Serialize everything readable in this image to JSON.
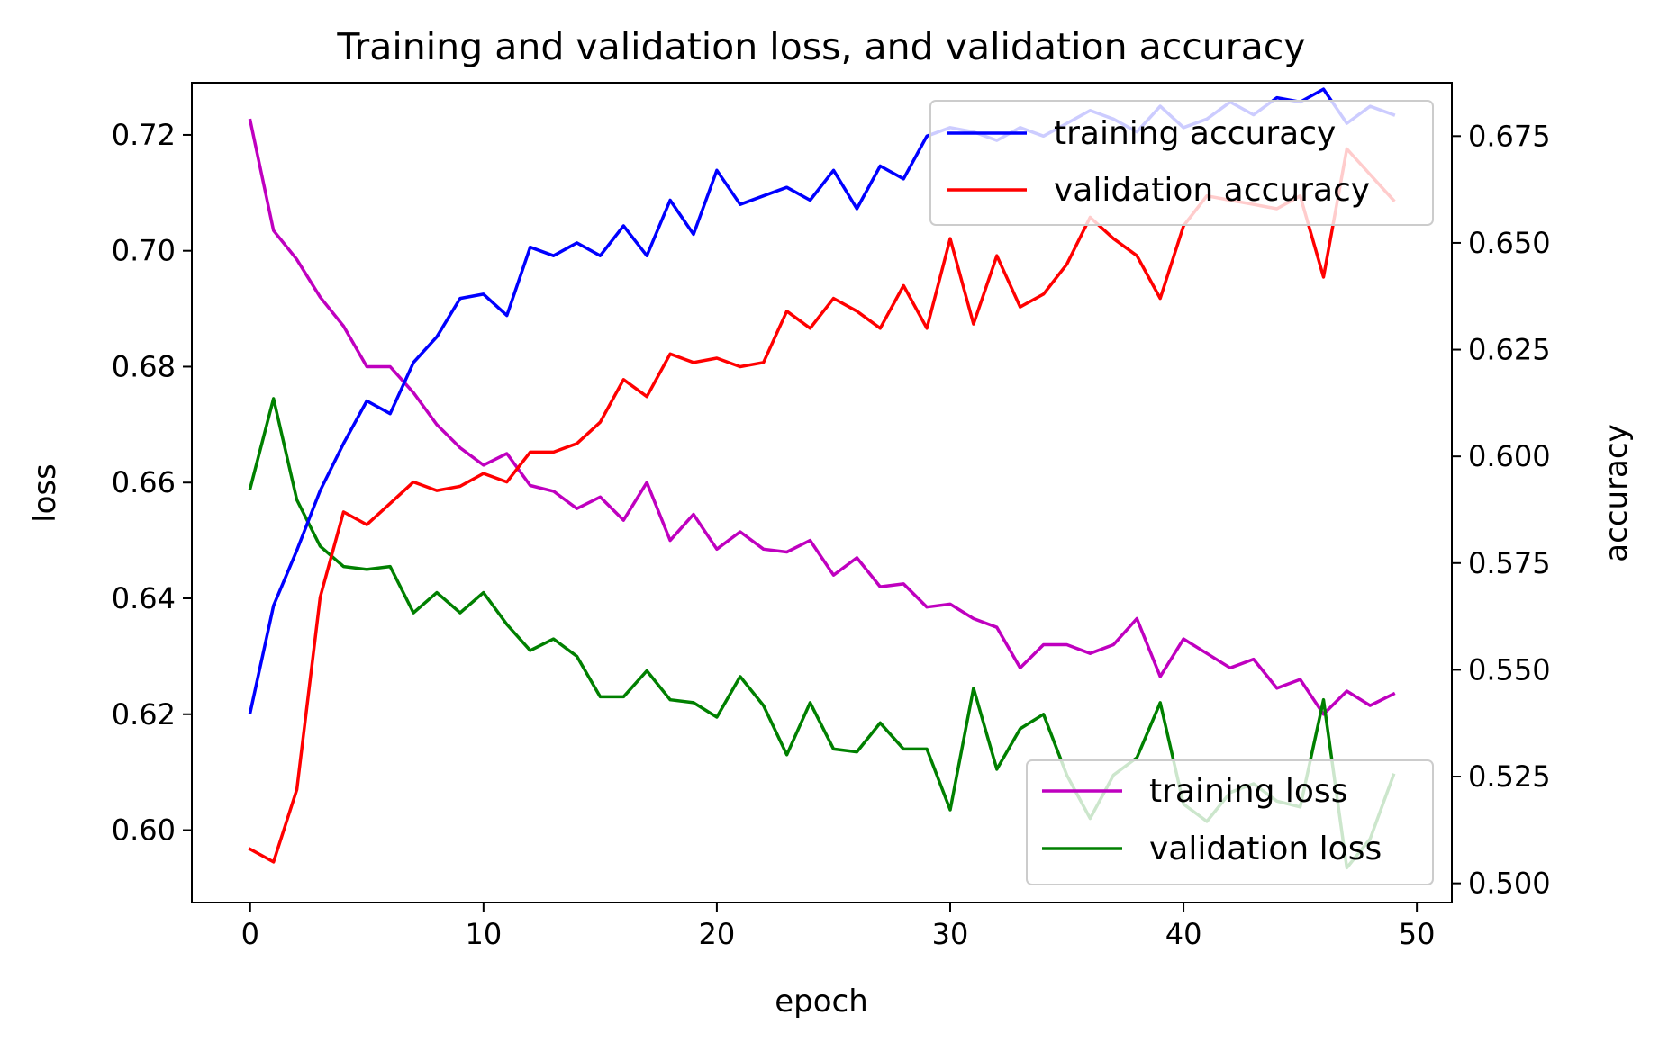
{
  "chart_data": {
    "type": "line",
    "title": "Training and validation loss, and validation accuracy",
    "xlabel": "epoch",
    "ylabel_left": "loss",
    "ylabel_right": "accuracy",
    "xlim": [
      -2.5,
      51.5
    ],
    "ylim_left": [
      0.5875,
      0.729
    ],
    "ylim_right": [
      0.4955,
      0.6875
    ],
    "xticks": [
      0,
      10,
      20,
      30,
      40,
      50
    ],
    "yticks_left": [
      0.6,
      0.62,
      0.64,
      0.66,
      0.68,
      0.7,
      0.72
    ],
    "yticks_right": [
      0.5,
      0.525,
      0.55,
      0.575,
      0.6,
      0.625,
      0.65,
      0.675
    ],
    "x": [
      0,
      1,
      2,
      3,
      4,
      5,
      6,
      7,
      8,
      9,
      10,
      11,
      12,
      13,
      14,
      15,
      16,
      17,
      18,
      19,
      20,
      21,
      22,
      23,
      24,
      25,
      26,
      27,
      28,
      29,
      30,
      31,
      32,
      33,
      34,
      35,
      36,
      37,
      38,
      39,
      40,
      41,
      42,
      43,
      44,
      45,
      46,
      47,
      48,
      49
    ],
    "series_right": [
      {
        "name": "training accuracy",
        "color": "#0000ff",
        "values": [
          0.54,
          0.565,
          0.578,
          0.592,
          0.603,
          0.613,
          0.61,
          0.622,
          0.628,
          0.637,
          0.638,
          0.633,
          0.649,
          0.647,
          0.65,
          0.647,
          0.654,
          0.647,
          0.66,
          0.652,
          0.667,
          0.659,
          0.661,
          0.663,
          0.66,
          0.667,
          0.658,
          0.668,
          0.665,
          0.675,
          0.677,
          0.676,
          0.674,
          0.677,
          0.675,
          0.678,
          0.681,
          0.679,
          0.676,
          0.682,
          0.677,
          0.679,
          0.683,
          0.68,
          0.684,
          0.683,
          0.686,
          0.678,
          0.682,
          0.68
        ]
      },
      {
        "name": "validation accuracy",
        "color": "#ff0000",
        "values": [
          0.508,
          0.505,
          0.522,
          0.567,
          0.587,
          0.584,
          0.589,
          0.594,
          0.592,
          0.593,
          0.596,
          0.594,
          0.601,
          0.601,
          0.603,
          0.608,
          0.618,
          0.614,
          0.624,
          0.622,
          0.623,
          0.621,
          0.622,
          0.634,
          0.63,
          0.637,
          0.634,
          0.63,
          0.64,
          0.63,
          0.651,
          0.631,
          0.647,
          0.635,
          0.638,
          0.645,
          0.656,
          0.651,
          0.647,
          0.637,
          0.654,
          0.661,
          0.66,
          0.659,
          0.658,
          0.661,
          0.642,
          0.672,
          0.666,
          0.66
        ]
      }
    ],
    "series_left": [
      {
        "name": "training loss",
        "color": "#bf00bf",
        "values": [
          0.7225,
          0.7035,
          0.6985,
          0.692,
          0.687,
          0.68,
          0.68,
          0.6755,
          0.67,
          0.666,
          0.663,
          0.665,
          0.6595,
          0.6585,
          0.6555,
          0.6575,
          0.6535,
          0.66,
          0.65,
          0.6545,
          0.6485,
          0.6515,
          0.6485,
          0.648,
          0.65,
          0.644,
          0.647,
          0.642,
          0.6425,
          0.6385,
          0.639,
          0.6365,
          0.635,
          0.628,
          0.632,
          0.632,
          0.6305,
          0.632,
          0.6365,
          0.6265,
          0.633,
          0.6305,
          0.628,
          0.6295,
          0.6245,
          0.626,
          0.62,
          0.624,
          0.6215,
          0.6235
        ]
      },
      {
        "name": "validation loss",
        "color": "#008000",
        "values": [
          0.659,
          0.6745,
          0.657,
          0.649,
          0.6455,
          0.645,
          0.6455,
          0.6375,
          0.641,
          0.6375,
          0.641,
          0.6355,
          0.631,
          0.633,
          0.63,
          0.623,
          0.623,
          0.6275,
          0.6225,
          0.622,
          0.6195,
          0.6265,
          0.6215,
          0.613,
          0.622,
          0.614,
          0.6135,
          0.6185,
          0.614,
          0.614,
          0.6035,
          0.6245,
          0.6105,
          0.6175,
          0.62,
          0.6095,
          0.602,
          0.6095,
          0.6125,
          0.622,
          0.6045,
          0.6015,
          0.6065,
          0.608,
          0.605,
          0.604,
          0.6225,
          0.5935,
          0.5985,
          0.6095
        ]
      }
    ],
    "legend_right_placement": "top-right",
    "legend_left_placement": "bottom-right",
    "grid": false
  }
}
